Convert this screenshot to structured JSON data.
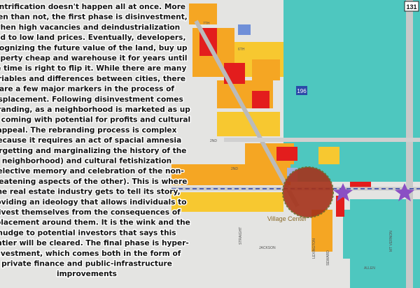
{
  "paragraph": {
    "lines": [
      "Gentrification doesn't happen all at once. More",
      "often than not, the first phase is disinvestment,",
      "when high vacancies and deindustrialization",
      "lead to low land prices. Eventually, developers,",
      "recognizing the future value of the land, buy up",
      "property cheap and warehouse it for years until",
      "the time is right to flip it. While there are many",
      "variables and differences between cities, there",
      "are a few major markers in the process of",
      "displacement. Following disinvestment comes",
      "rebranding, as a neighborhood is marketed as up",
      "and coming with potential for profits and cultural",
      "appeal. The rebranding process is complex",
      "because it requires an act of spacial amnesia",
      "(forgetting and marginalizing the history of the",
      "neighborhood) and cultural fetishization",
      "(selective memory and celebration of the non-",
      "threatening aspects of the other). This is where",
      "the real estate industry gets to tell its story,",
      "providing an ideology that allows individuals to",
      "divest themselves from the consequences of",
      "displacement around them. It is the wink and the",
      "nudge to potential investors that says this",
      "frontier will be cleared. The final phase is hyper-",
      "investment, which comes both in the form of",
      "private finance and public-infrastructure",
      "improvements"
    ]
  },
  "map": {
    "village_center": "Village Center",
    "highway_196": "196",
    "highway_131": "131",
    "streets": [
      "2ND",
      "2ND",
      "JACKSON",
      "LEXINGTON",
      "SEWARD",
      "STRAIGHT",
      "MT VERNON",
      "ALLEN",
      "7TH",
      "6TH"
    ]
  }
}
